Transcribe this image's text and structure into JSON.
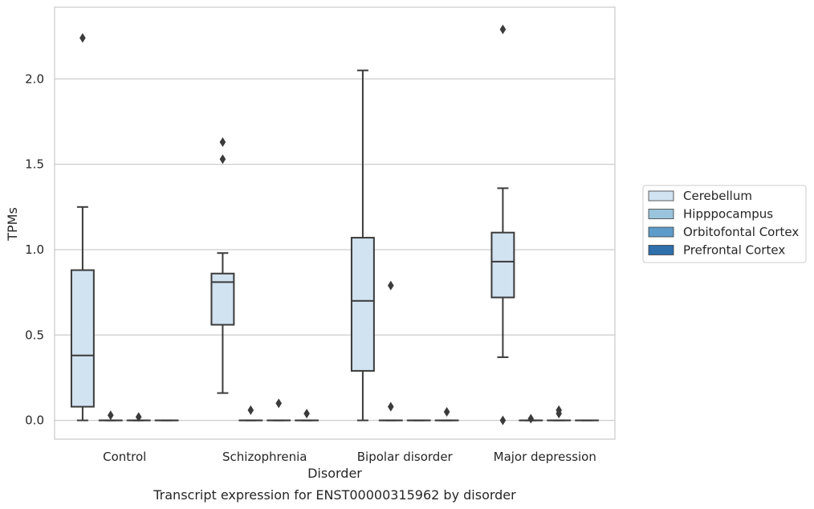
{
  "chart_data": {
    "type": "box",
    "caption": "Transcript expression for ENST00000315962 by disorder",
    "xlabel": "Disorder",
    "ylabel": "TPMs",
    "ylim": [
      -0.11,
      2.42
    ],
    "yticks": [
      "0.0",
      "0.5",
      "1.0",
      "1.5",
      "2.0"
    ],
    "ytick_values": [
      0.0,
      0.5,
      1.0,
      1.5,
      2.0
    ],
    "grid": "horizontal",
    "categories": [
      "Control",
      "Schizophrenia",
      "Bipolar disorder",
      "Major depression"
    ],
    "legend": {
      "placement": "right",
      "entries": [
        {
          "name": "Cerebellum",
          "color": "#d1e2f0"
        },
        {
          "name": "Hipppocampus",
          "color": "#9ac3dc"
        },
        {
          "name": "Orbitofontal Cortex",
          "color": "#5d9cca"
        },
        {
          "name": "Prefrontal Cortex",
          "color": "#2e6fac"
        }
      ]
    },
    "series": [
      {
        "name": "Cerebellum",
        "boxes": [
          {
            "category": "Control",
            "whisker_low": 0.0,
            "q1": 0.08,
            "median": 0.38,
            "q3": 0.88,
            "whisker_high": 1.25,
            "outliers": [
              2.24
            ]
          },
          {
            "category": "Schizophrenia",
            "whisker_low": 0.16,
            "q1": 0.56,
            "median": 0.81,
            "q3": 0.86,
            "whisker_high": 0.98,
            "outliers": [
              1.53,
              1.63
            ]
          },
          {
            "category": "Bipolar disorder",
            "whisker_low": 0.0,
            "q1": 0.29,
            "median": 0.7,
            "q3": 1.07,
            "whisker_high": 2.05,
            "outliers": []
          },
          {
            "category": "Major depression",
            "whisker_low": 0.37,
            "q1": 0.72,
            "median": 0.93,
            "q3": 1.1,
            "whisker_high": 1.36,
            "outliers": [
              0.0,
              2.29
            ]
          }
        ]
      },
      {
        "name": "Hipppocampus",
        "boxes": [
          {
            "category": "Control",
            "whisker_low": 0.0,
            "q1": 0.0,
            "median": 0.0,
            "q3": 0.0,
            "whisker_high": 0.0,
            "outliers": [
              0.03
            ]
          },
          {
            "category": "Schizophrenia",
            "whisker_low": 0.0,
            "q1": 0.0,
            "median": 0.0,
            "q3": 0.0,
            "whisker_high": 0.0,
            "outliers": [
              0.06
            ]
          },
          {
            "category": "Bipolar disorder",
            "whisker_low": 0.0,
            "q1": 0.0,
            "median": 0.0,
            "q3": 0.0,
            "whisker_high": 0.0,
            "outliers": [
              0.08,
              0.79
            ]
          },
          {
            "category": "Major depression",
            "whisker_low": 0.0,
            "q1": 0.0,
            "median": 0.0,
            "q3": 0.0,
            "whisker_high": 0.0,
            "outliers": [
              0.01
            ]
          }
        ]
      },
      {
        "name": "Orbitofontal Cortex",
        "boxes": [
          {
            "category": "Control",
            "whisker_low": 0.0,
            "q1": 0.0,
            "median": 0.0,
            "q3": 0.0,
            "whisker_high": 0.0,
            "outliers": [
              0.02
            ]
          },
          {
            "category": "Schizophrenia",
            "whisker_low": 0.0,
            "q1": 0.0,
            "median": 0.0,
            "q3": 0.0,
            "whisker_high": 0.0,
            "outliers": [
              0.1
            ]
          },
          {
            "category": "Bipolar disorder",
            "whisker_low": 0.0,
            "q1": 0.0,
            "median": 0.0,
            "q3": 0.0,
            "whisker_high": 0.0,
            "outliers": []
          },
          {
            "category": "Major depression",
            "whisker_low": 0.0,
            "q1": 0.0,
            "median": 0.0,
            "q3": 0.0,
            "whisker_high": 0.0,
            "outliers": [
              0.04,
              0.06
            ]
          }
        ]
      },
      {
        "name": "Prefrontal Cortex",
        "boxes": [
          {
            "category": "Control",
            "whisker_low": 0.0,
            "q1": 0.0,
            "median": 0.0,
            "q3": 0.0,
            "whisker_high": 0.0,
            "outliers": []
          },
          {
            "category": "Schizophrenia",
            "whisker_low": 0.0,
            "q1": 0.0,
            "median": 0.0,
            "q3": 0.0,
            "whisker_high": 0.0,
            "outliers": [
              0.04
            ]
          },
          {
            "category": "Bipolar disorder",
            "whisker_low": 0.0,
            "q1": 0.0,
            "median": 0.0,
            "q3": 0.0,
            "whisker_high": 0.0,
            "outliers": [
              0.05
            ]
          },
          {
            "category": "Major depression",
            "whisker_low": 0.0,
            "q1": 0.0,
            "median": 0.0,
            "q3": 0.0,
            "whisker_high": 0.0,
            "outliers": []
          }
        ]
      }
    ],
    "style": {
      "line_color": "#3b3b3b",
      "grid_color": "#cccccc",
      "frame_color": "#cccccc"
    }
  }
}
